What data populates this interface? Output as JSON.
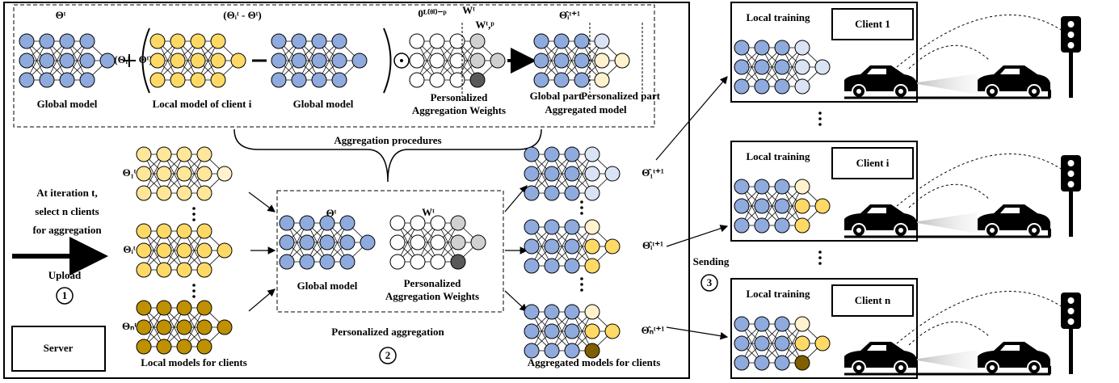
{
  "top": {
    "global_symbol": "Θᵗ",
    "global_caption": "Global model",
    "difference": "(Θᵢᵗ - Θᵗ)",
    "local_caption": "Local model of client i",
    "global_caption_2": "Global model",
    "zero_weights": "0ᴸ⁽ᶿⁱ⁾⁻ᵖ",
    "weights_global": "Wᵗ",
    "weights_personal": "Wᵗ,ᵖ",
    "weights_caption": [
      "Personalized",
      "Aggregation Weights"
    ],
    "aggregated_symbol": "Θ̂ᵢᵗ⁺¹",
    "global_part": "Global part",
    "personalized_part": "Personalized part",
    "aggregated_caption": "Aggregated model"
  },
  "procedures": "Aggregation procedures",
  "left": {
    "step_text": [
      "At iteration t,",
      "select n clients",
      "for aggregation"
    ],
    "upload": "Upload",
    "step": "1",
    "local_symbols": [
      "Θ₁ᵗ",
      "Θᵢᵗ",
      "Θₙᵗ"
    ],
    "local_caption": "Local models for clients"
  },
  "center": {
    "global_symbol": "Θᵗ",
    "global_caption": "Global model",
    "weights_symbol": "Wᵗ",
    "weights_caption": [
      "Personalized",
      "Aggregation Weights"
    ],
    "title": "Personalized aggregation",
    "step": "2"
  },
  "right": {
    "symbols": [
      "Θ̂₁ᵗ⁺¹",
      "Θ̂ᵢᵗ⁺¹",
      "Θ̂ₙᵗ⁺¹"
    ],
    "caption": "Aggregated models for clients"
  },
  "server": "Server",
  "sending": {
    "label": "Sending",
    "step": "3"
  },
  "clients": [
    {
      "label": "Local training",
      "name": "Client 1"
    },
    {
      "label": "Local training",
      "name": "Client i"
    },
    {
      "label": "Local training",
      "name": "Client n"
    }
  ]
}
